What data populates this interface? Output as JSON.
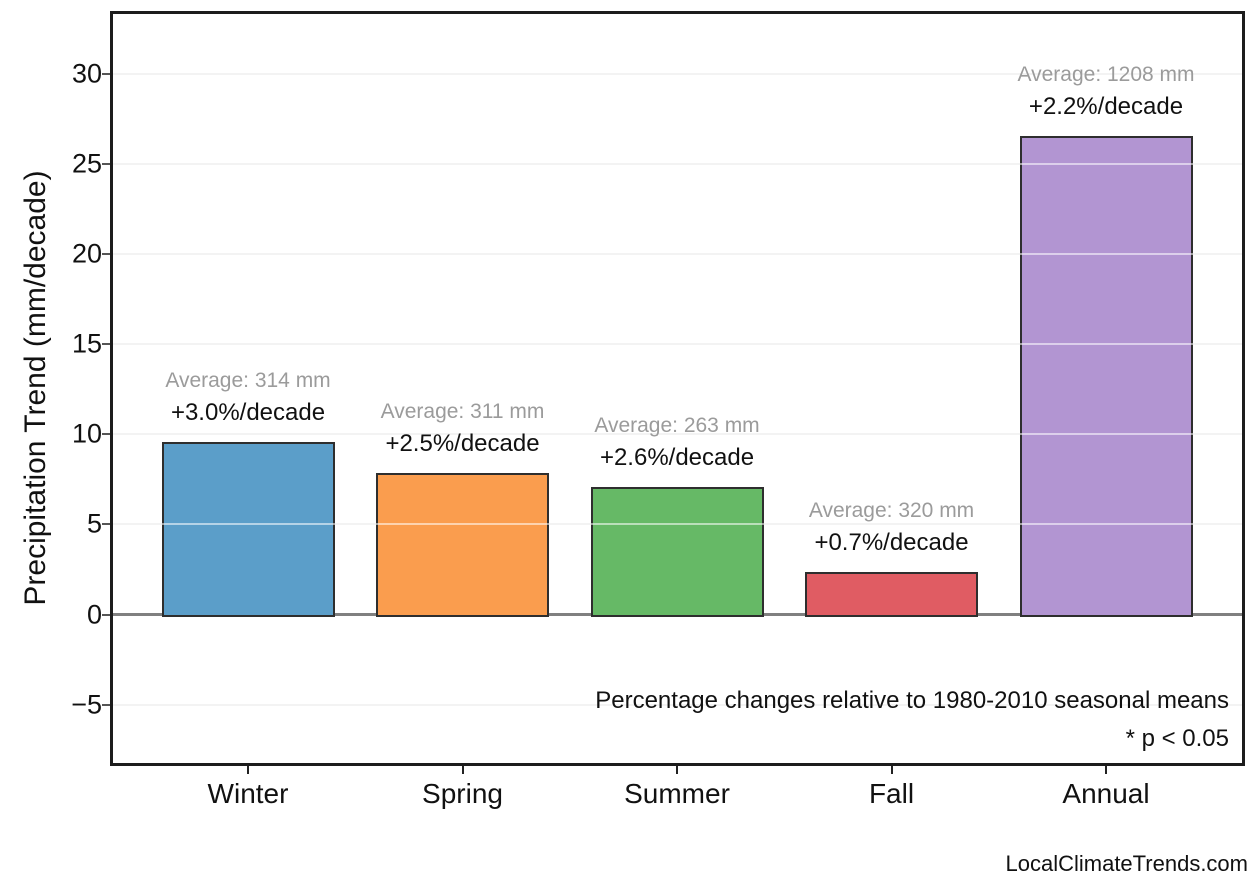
{
  "chart_data": {
    "type": "bar",
    "title": "",
    "xlabel": "",
    "ylabel": "Precipitation Trend (mm/decade)",
    "categories": [
      "Winter",
      "Spring",
      "Summer",
      "Fall",
      "Annual"
    ],
    "values": [
      9.5,
      7.8,
      7.0,
      2.3,
      26.5
    ],
    "averages_mm": [
      314,
      311,
      263,
      320,
      1208
    ],
    "annotations": [
      {
        "average": "Average: 314 mm",
        "trend": "+3.0%/decade"
      },
      {
        "average": "Average: 311 mm",
        "trend": "+2.5%/decade"
      },
      {
        "average": "Average: 263 mm",
        "trend": "+2.6%/decade"
      },
      {
        "average": "Average: 320 mm",
        "trend": "+0.7%/decade"
      },
      {
        "average": "Average: 1208 mm",
        "trend": "+2.2%/decade"
      }
    ],
    "bar_colors": [
      "#5b9ec9",
      "#fa9d4e",
      "#66b966",
      "#e05c63",
      "#b295d2"
    ],
    "bar_edge_color": "#2e2e2e",
    "yticks": [
      -5,
      0,
      5,
      10,
      15,
      20,
      25,
      30
    ],
    "ytick_labels": [
      "−5",
      "0",
      "5",
      "10",
      "15",
      "20",
      "25",
      "30"
    ],
    "ylim": [
      -8.3,
      33.4
    ],
    "grid": true,
    "legend": false,
    "background_color": "#ffffff",
    "zero_line_color": "#808080",
    "avg_label_color": "#9b9b9b",
    "trend_label_color": "#111111",
    "note_line1": "Percentage changes relative to 1980-2010 seasonal means",
    "note_line2": "* p < 0.05",
    "watermark": "LocalClimateTrends.com"
  }
}
